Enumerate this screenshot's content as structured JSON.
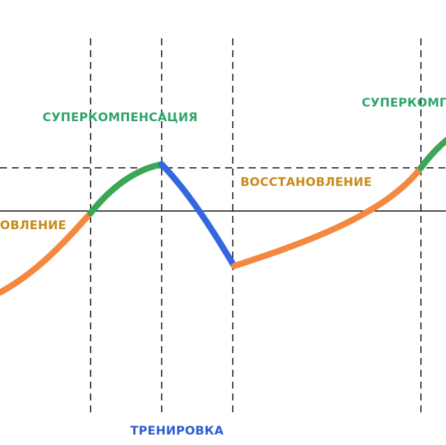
{
  "labels": {
    "supercompensation_1": "СУПЕРКОМПЕНСАЦИЯ",
    "supercompensation_2": "СУПЕРКОМП",
    "recovery_left": "ОВЛЕНИЕ",
    "recovery_right": "ВОССТАНОВЛЕНИЕ",
    "training": "ТРЕНИРОВКА"
  },
  "colors": {
    "recovery": "#f5883f",
    "supercompensation": "#3aa757",
    "training": "#3466e0",
    "supercompensation_text": "#2ea56a",
    "recovery_text": "#c98a1a",
    "training_text": "#2b5fd0",
    "line": "#000000"
  }
}
